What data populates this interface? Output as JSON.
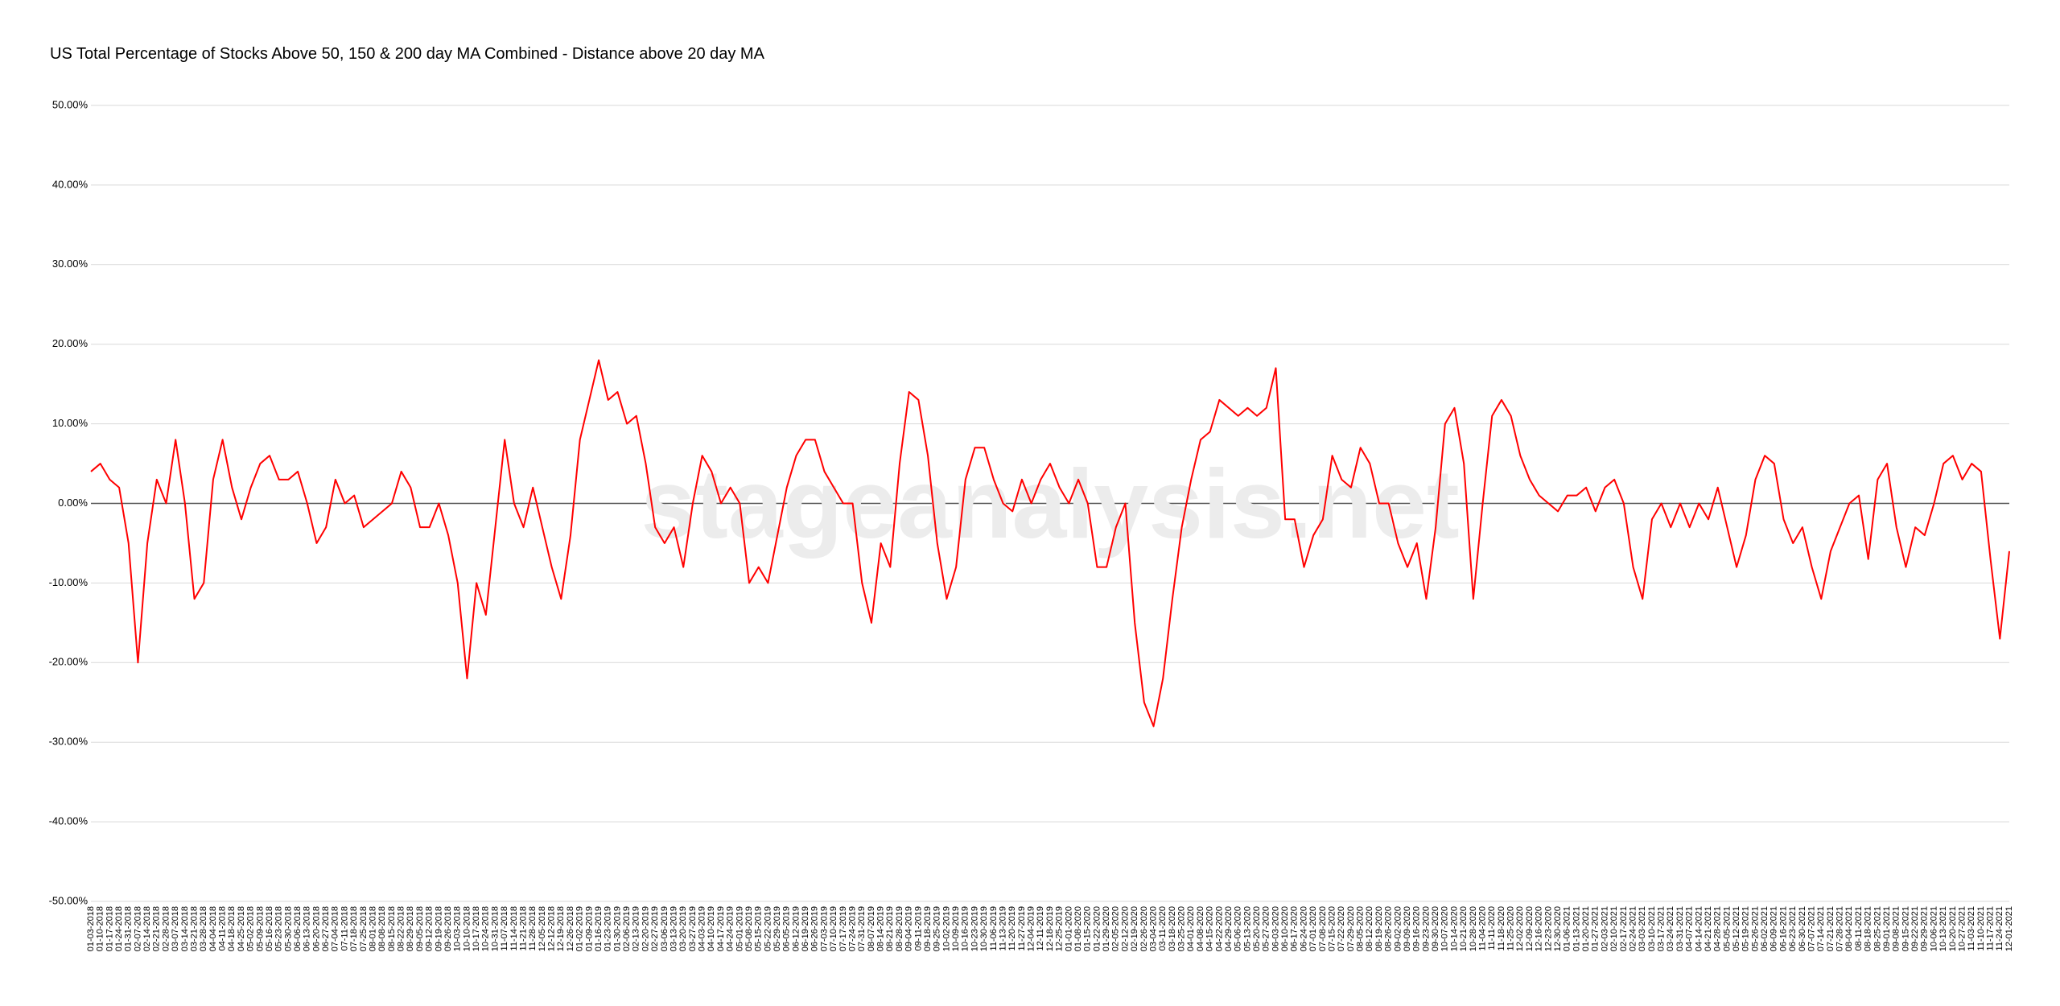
{
  "chart_data": {
    "type": "line",
    "title": "US Total Percentage of Stocks Above 50, 150 & 200 day MA Combined - Distance above 20 day MA",
    "watermark": "stageanalysis.net",
    "color": "#ff0000",
    "grid": true,
    "ylim": [
      -50,
      50
    ],
    "yticks": [
      {
        "value": -50,
        "label": "-50.00%"
      },
      {
        "value": -40,
        "label": "-40.00%"
      },
      {
        "value": -30,
        "label": "-30.00%"
      },
      {
        "value": -20,
        "label": "-20.00%"
      },
      {
        "value": -10,
        "label": "-10.00%"
      },
      {
        "value": 0,
        "label": "0.00%"
      },
      {
        "value": 10,
        "label": "10.00%"
      },
      {
        "value": 20,
        "label": "20.00%"
      },
      {
        "value": 30,
        "label": "30.00%"
      },
      {
        "value": 40,
        "label": "40.00%"
      },
      {
        "value": 50,
        "label": "50.00%"
      }
    ],
    "x": [
      "01-03-2018",
      "01-10-2018",
      "01-17-2018",
      "01-24-2018",
      "01-31-2018",
      "02-07-2018",
      "02-14-2018",
      "02-21-2018",
      "02-28-2018",
      "03-07-2018",
      "03-14-2018",
      "03-21-2018",
      "03-28-2018",
      "04-04-2018",
      "04-11-2018",
      "04-18-2018",
      "04-25-2018",
      "05-02-2018",
      "05-09-2018",
      "05-16-2018",
      "05-23-2018",
      "05-30-2018",
      "06-06-2018",
      "06-13-2018",
      "06-20-2018",
      "06-27-2018",
      "07-04-2018",
      "07-11-2018",
      "07-18-2018",
      "07-25-2018",
      "08-01-2018",
      "08-08-2018",
      "08-15-2018",
      "08-22-2018",
      "08-29-2018",
      "09-05-2018",
      "09-12-2018",
      "09-19-2018",
      "09-26-2018",
      "10-03-2018",
      "10-10-2018",
      "10-17-2018",
      "10-24-2018",
      "10-31-2018",
      "11-07-2018",
      "11-14-2018",
      "11-21-2018",
      "11-28-2018",
      "12-05-2018",
      "12-12-2018",
      "12-19-2018",
      "12-26-2018",
      "01-02-2019",
      "01-09-2019",
      "01-16-2019",
      "01-23-2019",
      "01-30-2019",
      "02-06-2019",
      "02-13-2019",
      "02-20-2019",
      "02-27-2019",
      "03-06-2019",
      "03-13-2019",
      "03-20-2019",
      "03-27-2019",
      "04-03-2019",
      "04-10-2019",
      "04-17-2019",
      "04-24-2019",
      "05-01-2019",
      "05-08-2019",
      "05-15-2019",
      "05-22-2019",
      "05-29-2019",
      "06-05-2019",
      "06-12-2019",
      "06-19-2019",
      "06-26-2019",
      "07-03-2019",
      "07-10-2019",
      "07-17-2019",
      "07-24-2019",
      "07-31-2019",
      "08-07-2019",
      "08-14-2019",
      "08-21-2019",
      "08-28-2019",
      "09-04-2019",
      "09-11-2019",
      "09-18-2019",
      "09-25-2019",
      "10-02-2019",
      "10-09-2019",
      "10-16-2019",
      "10-23-2019",
      "10-30-2019",
      "11-06-2019",
      "11-13-2019",
      "11-20-2019",
      "11-27-2019",
      "12-04-2019",
      "12-11-2019",
      "12-18-2019",
      "12-25-2019",
      "01-01-2020",
      "01-08-2020",
      "01-15-2020",
      "01-22-2020",
      "01-29-2020",
      "02-05-2020",
      "02-12-2020",
      "02-19-2020",
      "02-26-2020",
      "03-04-2020",
      "03-11-2020",
      "03-18-2020",
      "03-25-2020",
      "04-01-2020",
      "04-08-2020",
      "04-15-2020",
      "04-22-2020",
      "04-29-2020",
      "05-06-2020",
      "05-13-2020",
      "05-20-2020",
      "05-27-2020",
      "06-03-2020",
      "06-10-2020",
      "06-17-2020",
      "06-24-2020",
      "07-01-2020",
      "07-08-2020",
      "07-15-2020",
      "07-22-2020",
      "07-29-2020",
      "08-05-2020",
      "08-12-2020",
      "08-19-2020",
      "08-26-2020",
      "09-02-2020",
      "09-09-2020",
      "09-16-2020",
      "09-23-2020",
      "09-30-2020",
      "10-07-2020",
      "10-14-2020",
      "10-21-2020",
      "10-28-2020",
      "11-04-2020",
      "11-11-2020",
      "11-18-2020",
      "11-25-2020",
      "12-02-2020",
      "12-09-2020",
      "12-16-2020",
      "12-23-2020",
      "12-30-2020",
      "01-06-2021",
      "01-13-2021",
      "01-20-2021",
      "01-27-2021",
      "02-03-2021",
      "02-10-2021",
      "02-17-2021",
      "02-24-2021",
      "03-03-2021",
      "03-10-2021",
      "03-17-2021",
      "03-24-2021",
      "03-31-2021",
      "04-07-2021",
      "04-14-2021",
      "04-21-2021",
      "04-28-2021",
      "05-05-2021",
      "05-12-2021",
      "05-19-2021",
      "05-26-2021",
      "06-02-2021",
      "06-09-2021",
      "06-16-2021",
      "06-23-2021",
      "06-30-2021",
      "07-07-2021",
      "07-14-2021",
      "07-21-2021",
      "07-28-2021",
      "08-04-2021",
      "08-11-2021",
      "08-18-2021",
      "08-25-2021",
      "09-01-2021",
      "09-08-2021",
      "09-15-2021",
      "09-22-2021",
      "09-29-2021",
      "10-06-2021",
      "10-13-2021",
      "10-20-2021",
      "10-27-2021",
      "11-03-2021",
      "11-10-2021",
      "11-17-2021",
      "11-24-2021",
      "12-01-2021"
    ],
    "values": [
      4,
      5,
      3,
      2,
      -5,
      -20,
      -5,
      3,
      0,
      8,
      0,
      -12,
      -10,
      3,
      8,
      2,
      -2,
      2,
      5,
      6,
      3,
      3,
      4,
      0,
      -5,
      -3,
      3,
      0,
      1,
      -3,
      -2,
      -1,
      0,
      4,
      2,
      -3,
      -3,
      0,
      -4,
      -10,
      -22,
      -10,
      -14,
      -3,
      8,
      0,
      -3,
      2,
      -3,
      -8,
      -12,
      -4,
      8,
      13,
      18,
      13,
      14,
      10,
      11,
      5,
      -3,
      -5,
      -3,
      -8,
      0,
      6,
      4,
      0,
      2,
      0,
      -10,
      -8,
      -10,
      -4,
      2,
      6,
      8,
      8,
      4,
      2,
      0,
      0,
      -10,
      -15,
      -5,
      -8,
      5,
      14,
      13,
      6,
      -5,
      -12,
      -8,
      3,
      7,
      7,
      3,
      0,
      -1,
      3,
      0,
      3,
      5,
      2,
      0,
      3,
      0,
      -8,
      -8,
      -3,
      0,
      -15,
      -25,
      -28,
      -22,
      -12,
      -3,
      3,
      8,
      9,
      13,
      12,
      11,
      12,
      11,
      12,
      17,
      -2,
      -2,
      -8,
      -4,
      -2,
      6,
      3,
      2,
      7,
      5,
      0,
      0,
      -5,
      -8,
      -5,
      -12,
      -3,
      10,
      12,
      5,
      -12,
      0,
      11,
      13,
      11,
      6,
      3,
      1,
      0,
      -1,
      1,
      1,
      2,
      -1,
      2,
      3,
      0,
      -8,
      -12,
      -2,
      0,
      -3,
      0,
      -3,
      0,
      -2,
      2,
      -3,
      -8,
      -4,
      3,
      6,
      5,
      -2,
      -5,
      -3,
      -8,
      -12,
      -6,
      -3,
      0,
      1,
      -7,
      3,
      5,
      -3,
      -8,
      -3,
      -4,
      0,
      5,
      6,
      3,
      5,
      4,
      -7,
      -17,
      -6
    ]
  }
}
